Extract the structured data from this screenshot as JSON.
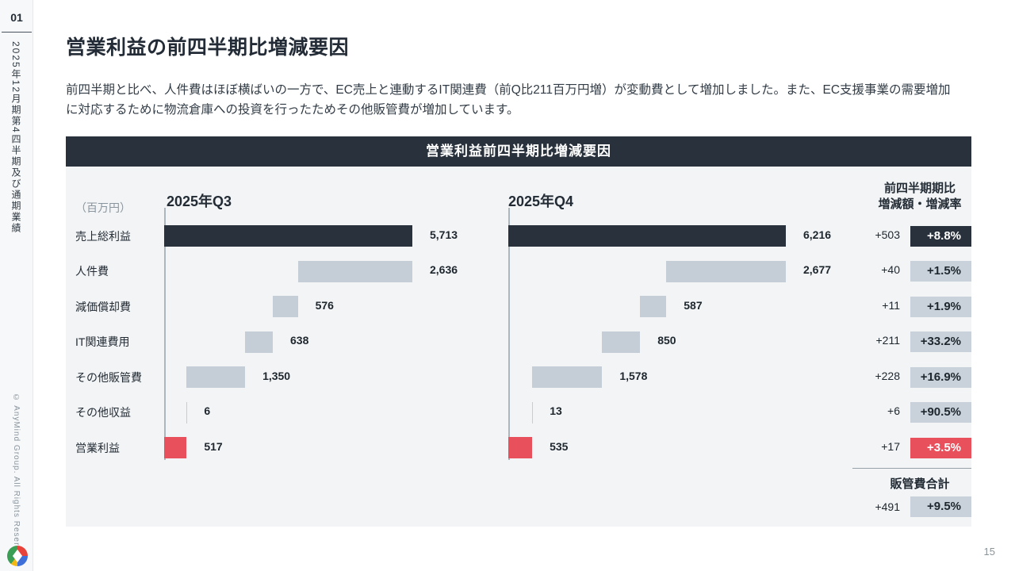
{
  "sidebar": {
    "section_number": "01",
    "section_title_vertical": "2025年12月期第4四半期及び通期業績",
    "copyright": "© AnyMind Group. All Rights Reserved.",
    "logo": "anymind-logo"
  },
  "page": {
    "title": "営業利益の前四半期比増減要因",
    "body_text": "前四半期と比べ、人件費はほぼ横ばいの一方で、EC売上と連動するIT関連費（前Q比211百万円増）が変動費として増加しました。また、EC支援事業の需要増加に対応するために物流倉庫への投資を行ったためその他販管費が増加しています。",
    "page_number": "15"
  },
  "chart_data": {
    "type": "bar",
    "subtype": "horizontal-waterfall-paired",
    "panel_title": "営業利益前四半期比増減要因",
    "unit_label": "（百万円）",
    "delta_header": [
      "前四半期期比",
      "増減額・増減率"
    ],
    "categories": [
      "売上総利益",
      "人件費",
      "減価償却費",
      "IT関連費用",
      "その他販管費",
      "その他収益",
      "営業利益"
    ],
    "row_kinds": [
      "total",
      "expense",
      "expense",
      "expense",
      "expense",
      "income",
      "profit"
    ],
    "series": [
      {
        "name": "2025年Q3",
        "values": [
          5713,
          2636,
          576,
          638,
          1350,
          6,
          517
        ],
        "labels": [
          "5,713",
          "2,636",
          "576",
          "638",
          "1,350",
          "6",
          "517"
        ]
      },
      {
        "name": "2025年Q4",
        "values": [
          6216,
          2677,
          587,
          850,
          1578,
          13,
          535
        ],
        "labels": [
          "6,216",
          "2,677",
          "587",
          "850",
          "1,578",
          "13",
          "535"
        ]
      }
    ],
    "deltas": {
      "amounts": [
        "+503",
        "+40",
        "+11",
        "+211",
        "+228",
        "+6",
        "+17"
      ],
      "rates": [
        "+8.8%",
        "+1.5%",
        "+1.9%",
        "+33.2%",
        "+16.9%",
        "+90.5%",
        "+3.5%"
      ],
      "rate_styles": [
        "dark",
        "gray",
        "gray",
        "gray",
        "gray",
        "gray",
        "red"
      ]
    },
    "sga_total": {
      "label": "販管費合計",
      "amount": "+491",
      "rate": "+9.5%"
    },
    "legend_position": "none",
    "grid": false,
    "colors": {
      "dark_bar": "#28313C",
      "gray_bar": "#C5CED7",
      "red_bar": "#E8505C",
      "badge_gray": "#C9D2DA",
      "panel_bg": "#F2F4F6",
      "axis": "#AEB6BD"
    }
  }
}
